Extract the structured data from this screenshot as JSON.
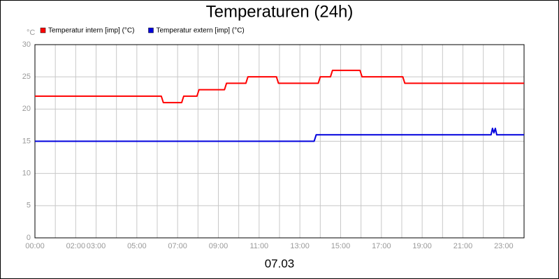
{
  "chart_data": {
    "type": "line",
    "title": "Temperaturen (24h)",
    "ylabel": "°C",
    "xlabel": "07.03",
    "xlim": [
      0,
      24
    ],
    "ylim": [
      0,
      30
    ],
    "yticks": [
      0,
      5,
      10,
      15,
      20,
      25,
      30
    ],
    "xticks": [
      {
        "value": 0,
        "label": "00:00"
      },
      {
        "value": 2,
        "label": "02:00"
      },
      {
        "value": 3,
        "label": "03:00"
      },
      {
        "value": 5,
        "label": "05:00"
      },
      {
        "value": 7,
        "label": "07:00"
      },
      {
        "value": 9,
        "label": "09:00"
      },
      {
        "value": 11,
        "label": "11:00"
      },
      {
        "value": 13,
        "label": "13:00"
      },
      {
        "value": 15,
        "label": "15:00"
      },
      {
        "value": 17,
        "label": "17:00"
      },
      {
        "value": 19,
        "label": "19:00"
      },
      {
        "value": 21,
        "label": "21:00"
      },
      {
        "value": 23,
        "label": "23:00"
      }
    ],
    "xgrid": [
      1,
      4,
      6,
      8,
      10,
      12,
      14,
      16,
      18,
      20,
      22
    ],
    "grid": true,
    "legend": "top-left",
    "series": [
      {
        "name": "Temperatur intern [imp] (°C)",
        "color": "#ff0000",
        "x": [
          0,
          6.2,
          6.3,
          7.2,
          7.3,
          7.95,
          8.05,
          9.3,
          9.4,
          10.35,
          10.45,
          11.85,
          11.95,
          13.9,
          14.0,
          14.5,
          14.6,
          15.95,
          16.05,
          18.05,
          18.15,
          24
        ],
        "values": [
          22,
          22,
          21,
          21,
          22,
          22,
          23,
          23,
          24,
          24,
          25,
          25,
          24,
          24,
          25,
          25,
          26,
          26,
          25,
          25,
          24,
          24
        ]
      },
      {
        "name": "Temperatur extern [imp] (°C)",
        "color": "#0000dd",
        "x": [
          0,
          13.7,
          13.8,
          22.38,
          22.45,
          22.52,
          22.59,
          22.66,
          24
        ],
        "values": [
          15,
          15,
          16,
          16,
          17,
          16.3,
          17,
          16,
          16
        ]
      }
    ]
  }
}
